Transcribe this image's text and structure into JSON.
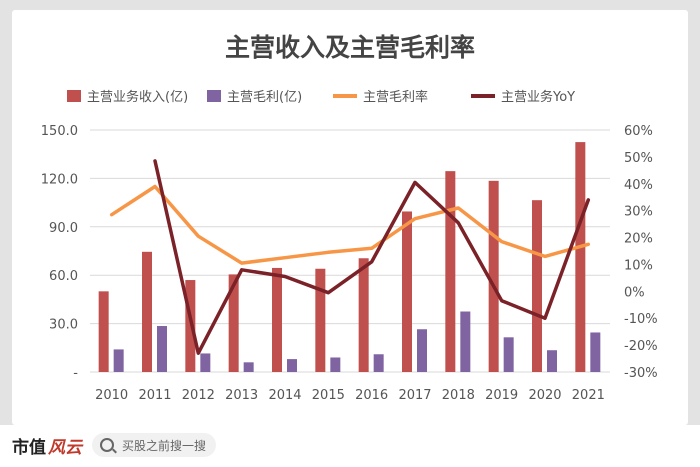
{
  "footer": {
    "brand_a": "市值",
    "brand_b": "风云",
    "search_placeholder": "买股之前搜一搜"
  },
  "colors": {
    "revenue": "#c0504d",
    "gross_profit": "#8064a2",
    "margin": "#f79646",
    "yoy": "#7b2128",
    "axis_text": "#555555",
    "grid": "#d9d9d9"
  },
  "chart_data": {
    "type": "bar",
    "title": "主营收入及主营毛利率",
    "categories": [
      "2010",
      "2011",
      "2012",
      "2013",
      "2014",
      "2015",
      "2016",
      "2017",
      "2018",
      "2019",
      "2020",
      "2021"
    ],
    "legend_position": "top",
    "grid": true,
    "series": [
      {
        "name": "主营业务收入(亿)",
        "type": "bar",
        "axis": "left",
        "values": [
          50,
          74.5,
          57,
          60.5,
          64.5,
          64,
          70.5,
          99.5,
          124.5,
          118.5,
          106.5,
          142.5
        ]
      },
      {
        "name": "主营毛利(亿)",
        "type": "bar",
        "axis": "left",
        "values": [
          14,
          28.5,
          11.5,
          6,
          8,
          9,
          11,
          26.5,
          37.5,
          21.5,
          13.5,
          24.5
        ]
      },
      {
        "name": "主营毛利率",
        "type": "line",
        "axis": "right",
        "values": [
          28.5,
          39,
          20.5,
          10.5,
          12.5,
          14.5,
          16,
          27,
          31,
          18.5,
          13,
          17.5
        ]
      },
      {
        "name": "主营业务YoY",
        "type": "line",
        "axis": "right",
        "values": [
          null,
          48.5,
          -23,
          8,
          5.5,
          -0.5,
          11,
          40.5,
          25.5,
          -3.5,
          -10,
          34
        ]
      }
    ],
    "left_axis": {
      "ylim": [
        0,
        150
      ],
      "ticks": [
        "-",
        "30.0",
        "60.0",
        "90.0",
        "120.0",
        "150.0"
      ]
    },
    "right_axis": {
      "ylim": [
        -30,
        60
      ],
      "ticks": [
        "-30%",
        "-20%",
        "-10%",
        "0%",
        "10%",
        "20%",
        "30%",
        "40%",
        "50%",
        "60%"
      ]
    }
  }
}
